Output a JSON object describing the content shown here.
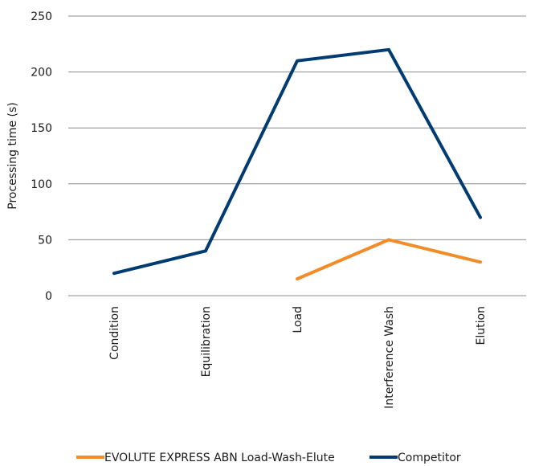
{
  "chart_data": {
    "type": "line",
    "title": "",
    "xlabel": "",
    "ylabel": "Processing time (s)",
    "categories": [
      "Condition",
      "Equilibration",
      "Load",
      "Interference Wash",
      "Elution"
    ],
    "ylim": [
      0,
      250
    ],
    "yticks": [
      0,
      50,
      100,
      150,
      200,
      250
    ],
    "grid": true,
    "legend_position": "bottom",
    "series": [
      {
        "name": "EVOLUTE EXPRESS ABN Load-Wash-Elute",
        "color": "#f28c28",
        "values": [
          null,
          null,
          15,
          50,
          30
        ]
      },
      {
        "name": "Competitor",
        "color": "#003b71",
        "values": [
          20,
          40,
          210,
          220,
          70
        ]
      }
    ]
  }
}
